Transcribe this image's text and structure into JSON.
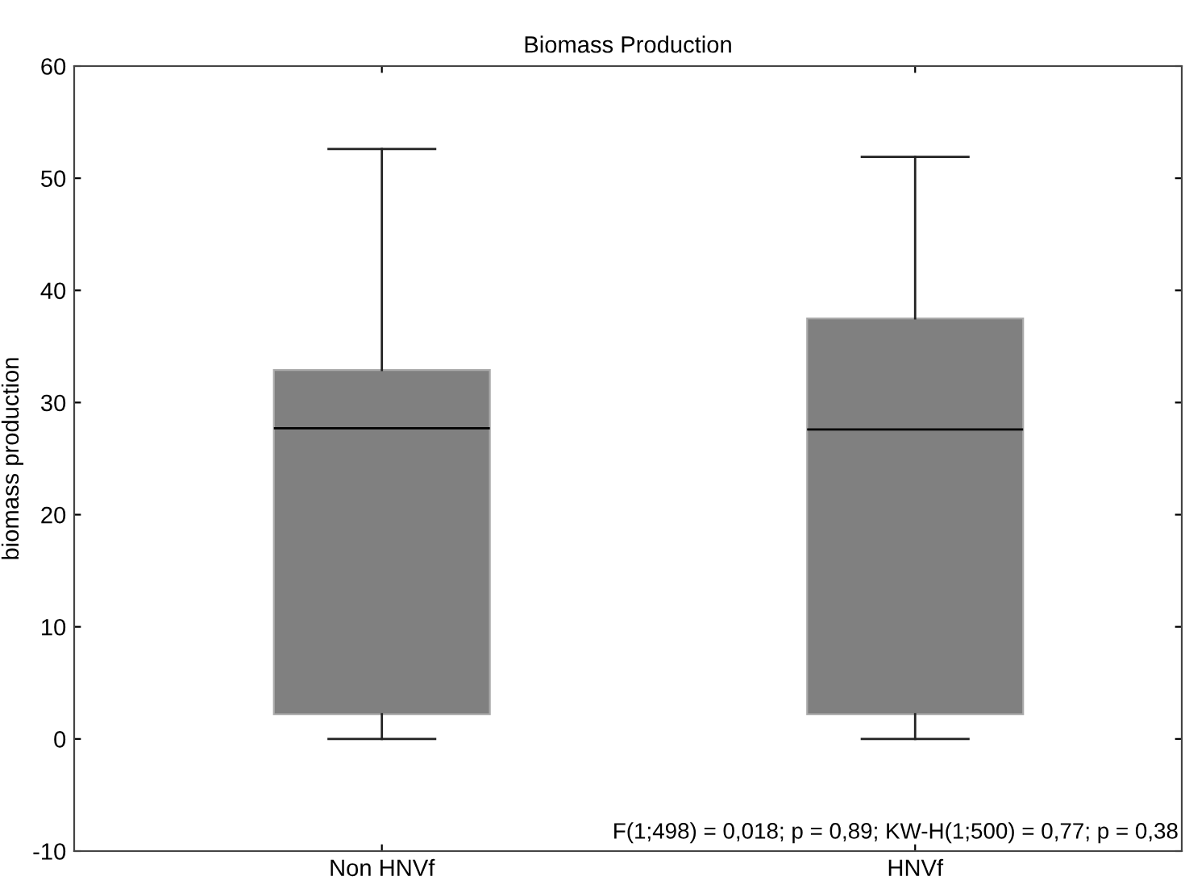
{
  "chart_data": {
    "type": "box",
    "title": "Biomass Production",
    "ylabel": "biomass production",
    "categories": [
      "Non HNVf",
      "HNVf"
    ],
    "boxes": [
      {
        "low": 0,
        "q1": 2.2,
        "median": 27.7,
        "q3": 32.9,
        "high": 52.6
      },
      {
        "low": 0,
        "q1": 2.2,
        "median": 27.6,
        "q3": 37.5,
        "high": 51.9
      }
    ],
    "color": "#808080",
    "ylim": [
      -10,
      60
    ],
    "yticks": [
      -10,
      0,
      10,
      20,
      30,
      40,
      50,
      60
    ],
    "annotations": [
      "F(1;498) = 0,018; p = 0,89; KW-H(1;500) = 0,77; p = 0,38"
    ],
    "grid": false,
    "legend": false
  }
}
